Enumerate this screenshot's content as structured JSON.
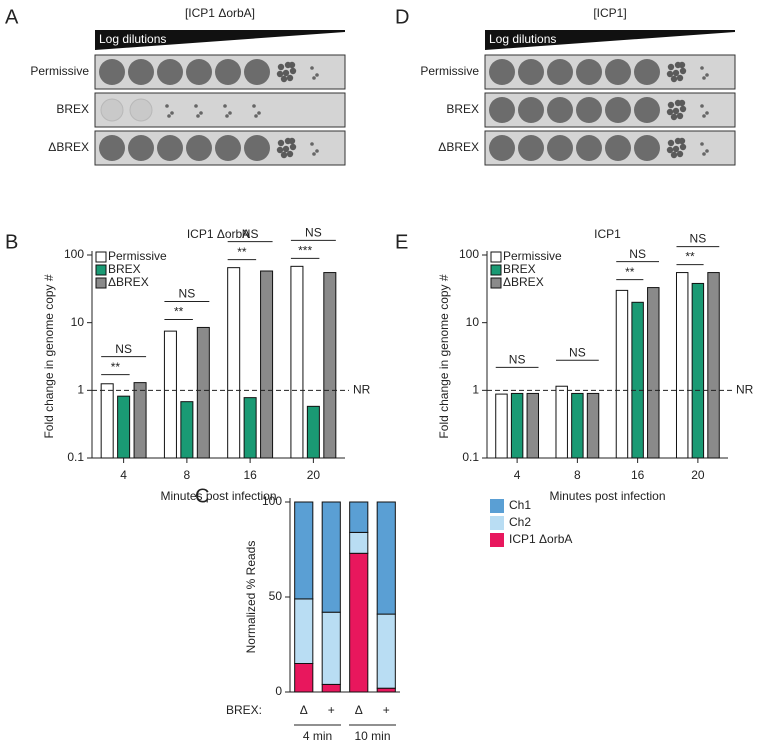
{
  "plaque_panels": [
    {
      "letter": "A",
      "title": "[ICP1 ΔorbA]",
      "dilution_label": "Log dilutions",
      "rows": [
        "Permissive",
        "BREX",
        "ΔBREX"
      ]
    },
    {
      "letter": "D",
      "title": "[ICP1]",
      "dilution_label": "Log dilutions",
      "rows": [
        "Permissive",
        "BREX",
        "ΔBREX"
      ]
    }
  ],
  "chart_data": [
    {
      "panel_letter": "B",
      "type": "bar",
      "title": "ICP1 ΔorbA",
      "xlabel": "Minutes post infection",
      "ylabel": "Fold change in genome copy #",
      "categories": [
        "4",
        "8",
        "16",
        "20"
      ],
      "series": [
        {
          "name": "Permissive",
          "color": "#ffffff",
          "values": [
            1.25,
            7.5,
            65,
            68
          ]
        },
        {
          "name": "BREX",
          "color": "#1a9a74",
          "values": [
            0.82,
            0.68,
            0.78,
            0.58
          ]
        },
        {
          "name": "ΔBREX",
          "color": "#8a8a8a",
          "values": [
            1.3,
            8.5,
            58,
            55
          ]
        }
      ],
      "ylim": [
        0.1,
        100
      ],
      "yticks": [
        0.1,
        1,
        10,
        100
      ],
      "log_scale": true,
      "legend": "upper left",
      "reference_line": {
        "value": 1,
        "label": "NR"
      },
      "significance": [
        {
          "category": "4",
          "permissive_vs_brex": "**",
          "permissive_vs_dbrex": "NS"
        },
        {
          "category": "8",
          "permissive_vs_brex": "**",
          "permissive_vs_dbrex": "NS"
        },
        {
          "category": "16",
          "permissive_vs_brex": "**",
          "permissive_vs_dbrex": "NS"
        },
        {
          "category": "20",
          "permissive_vs_brex": "***",
          "permissive_vs_dbrex": "NS"
        }
      ]
    },
    {
      "panel_letter": "E",
      "type": "bar",
      "title": "ICP1",
      "xlabel": "Minutes post infection",
      "ylabel": "Fold change in genome copy #",
      "categories": [
        "4",
        "8",
        "16",
        "20"
      ],
      "series": [
        {
          "name": "Permissive",
          "color": "#ffffff",
          "values": [
            0.88,
            1.15,
            30,
            55
          ]
        },
        {
          "name": "BREX",
          "color": "#1a9a74",
          "values": [
            0.9,
            0.9,
            20,
            38
          ]
        },
        {
          "name": "ΔBREX",
          "color": "#8a8a8a",
          "values": [
            0.9,
            0.9,
            33,
            55
          ]
        }
      ],
      "ylim": [
        0.1,
        100
      ],
      "yticks": [
        0.1,
        1,
        10,
        100
      ],
      "log_scale": true,
      "legend": "upper left",
      "reference_line": {
        "value": 1,
        "label": "NR"
      },
      "significance": [
        {
          "category": "4",
          "permissive_vs_dbrex": "NS"
        },
        {
          "category": "8",
          "permissive_vs_dbrex": "NS"
        },
        {
          "category": "16",
          "permissive_vs_brex": "**",
          "permissive_vs_dbrex": "NS"
        },
        {
          "category": "20",
          "permissive_vs_brex": "**",
          "permissive_vs_dbrex": "NS"
        }
      ]
    },
    {
      "panel_letter": "C",
      "type": "stacked_bar",
      "ylabel": "Normalized % Reads",
      "row_label": "BREX:",
      "categories": [
        "Δ",
        "+",
        "Δ",
        "+"
      ],
      "groups": [
        "4 min",
        "10 min"
      ],
      "series": [
        {
          "name": "ICP1 ΔorbA",
          "color": "#e8175d",
          "values": [
            15,
            4,
            73,
            2
          ]
        },
        {
          "name": "Ch2",
          "color": "#b9ddf3",
          "values": [
            34,
            38,
            11,
            39
          ]
        },
        {
          "name": "Ch1",
          "color": "#5a9fd4",
          "values": [
            51,
            58,
            16,
            59
          ]
        }
      ],
      "ylim": [
        0,
        100
      ],
      "yticks": [
        0,
        50,
        100
      ],
      "legend": "right"
    }
  ]
}
